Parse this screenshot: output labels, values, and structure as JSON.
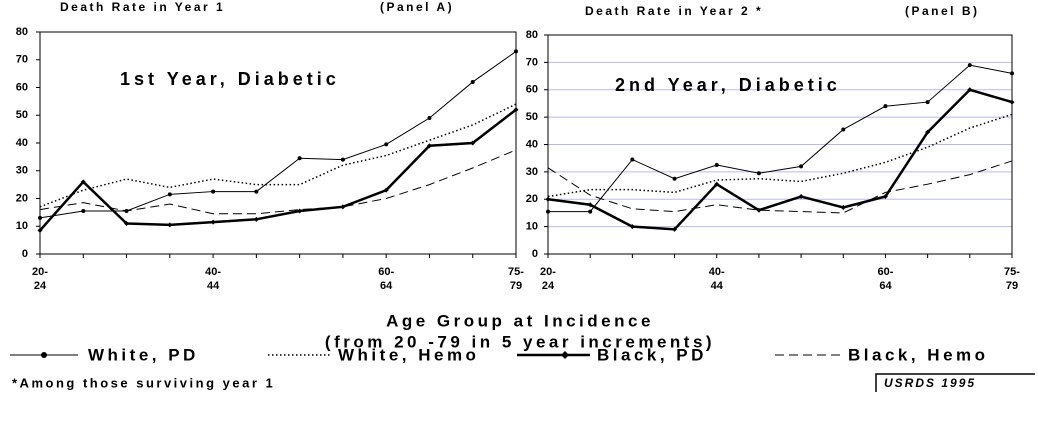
{
  "chart_data": [
    {
      "type": "line",
      "title": "Death Rate in Year 1",
      "panel": "(Panel A)",
      "annotation": "1st Year, Diabetic",
      "categories": [
        "20-24",
        null,
        null,
        null,
        "40-44",
        null,
        null,
        null,
        "60-64",
        null,
        null,
        "75-79"
      ],
      "ylim": [
        0,
        80
      ],
      "yticks": [
        0,
        10,
        20,
        30,
        40,
        50,
        60,
        70,
        80
      ],
      "grid": false,
      "series": [
        {
          "name": "White, PD",
          "color": "#000000",
          "width": 1,
          "dash": "none",
          "marker": "circle",
          "values": [
            13,
            15.5,
            15.5,
            21.5,
            22.5,
            22.5,
            34.5,
            34,
            39.5,
            49,
            62,
            73
          ]
        },
        {
          "name": "White, Hemo",
          "color": "#000000",
          "width": 1.5,
          "dash": "1.5,2.5",
          "marker": "none",
          "values": [
            17,
            23,
            27,
            24,
            27,
            25,
            25,
            32,
            35.5,
            41,
            46.5,
            54
          ]
        },
        {
          "name": "Black, PD",
          "color": "#000000",
          "width": 2.5,
          "dash": "none",
          "marker": "diamond",
          "values": [
            8.5,
            26,
            11,
            10.5,
            11.5,
            12.5,
            15.5,
            17,
            23,
            39,
            40,
            52
          ]
        },
        {
          "name": "Black, Hemo",
          "color": "#000000",
          "width": 1,
          "dash": "9,5",
          "marker": "none",
          "values": [
            16,
            18.5,
            15.5,
            18,
            14.5,
            14.5,
            16,
            17,
            20,
            25,
            31,
            37.5
          ]
        }
      ]
    },
    {
      "type": "line",
      "title": "Death Rate in Year 2 *",
      "panel": "(Panel B)",
      "annotation": "2nd Year, Diabetic",
      "categories": [
        "20-24",
        null,
        null,
        null,
        "40-44",
        null,
        null,
        null,
        "60-64",
        null,
        null,
        "75-79"
      ],
      "ylim": [
        0,
        80
      ],
      "yticks": [
        0,
        10,
        20,
        30,
        40,
        50,
        60,
        70,
        80
      ],
      "grid": true,
      "grid_color": "#b8b8f0",
      "series": [
        {
          "color": "#000000",
          "width": 1,
          "dash": "none",
          "marker": "circle",
          "values": [
            15.5,
            15.5,
            34.5,
            27.5,
            32.5,
            29.5,
            32,
            45.5,
            54,
            55.5,
            69,
            66
          ]
        },
        {
          "color": "#000000",
          "width": 1.5,
          "dash": "1.5,2.5",
          "marker": "none",
          "values": [
            21,
            23.5,
            23.5,
            22.5,
            27,
            27.5,
            26.5,
            29.5,
            33.5,
            39,
            46,
            51
          ]
        },
        {
          "color": "#000000",
          "width": 2.5,
          "dash": "none",
          "marker": "diamond",
          "values": [
            20,
            18,
            10,
            9,
            25.5,
            16,
            21,
            17,
            21,
            44.5,
            60,
            55.5
          ]
        },
        {
          "color": "#000000",
          "width": 1,
          "dash": "9,5",
          "marker": "none",
          "values": [
            31.5,
            21.5,
            16.5,
            15.5,
            18,
            16,
            15.5,
            15,
            22.5,
            25.5,
            29,
            34
          ]
        }
      ]
    }
  ],
  "x_label": [
    "Age Group at Incidence",
    "(from 20 -79 in 5 year increments)"
  ],
  "footnote": "*Among those surviving year 1",
  "source": "USRDS 1995"
}
